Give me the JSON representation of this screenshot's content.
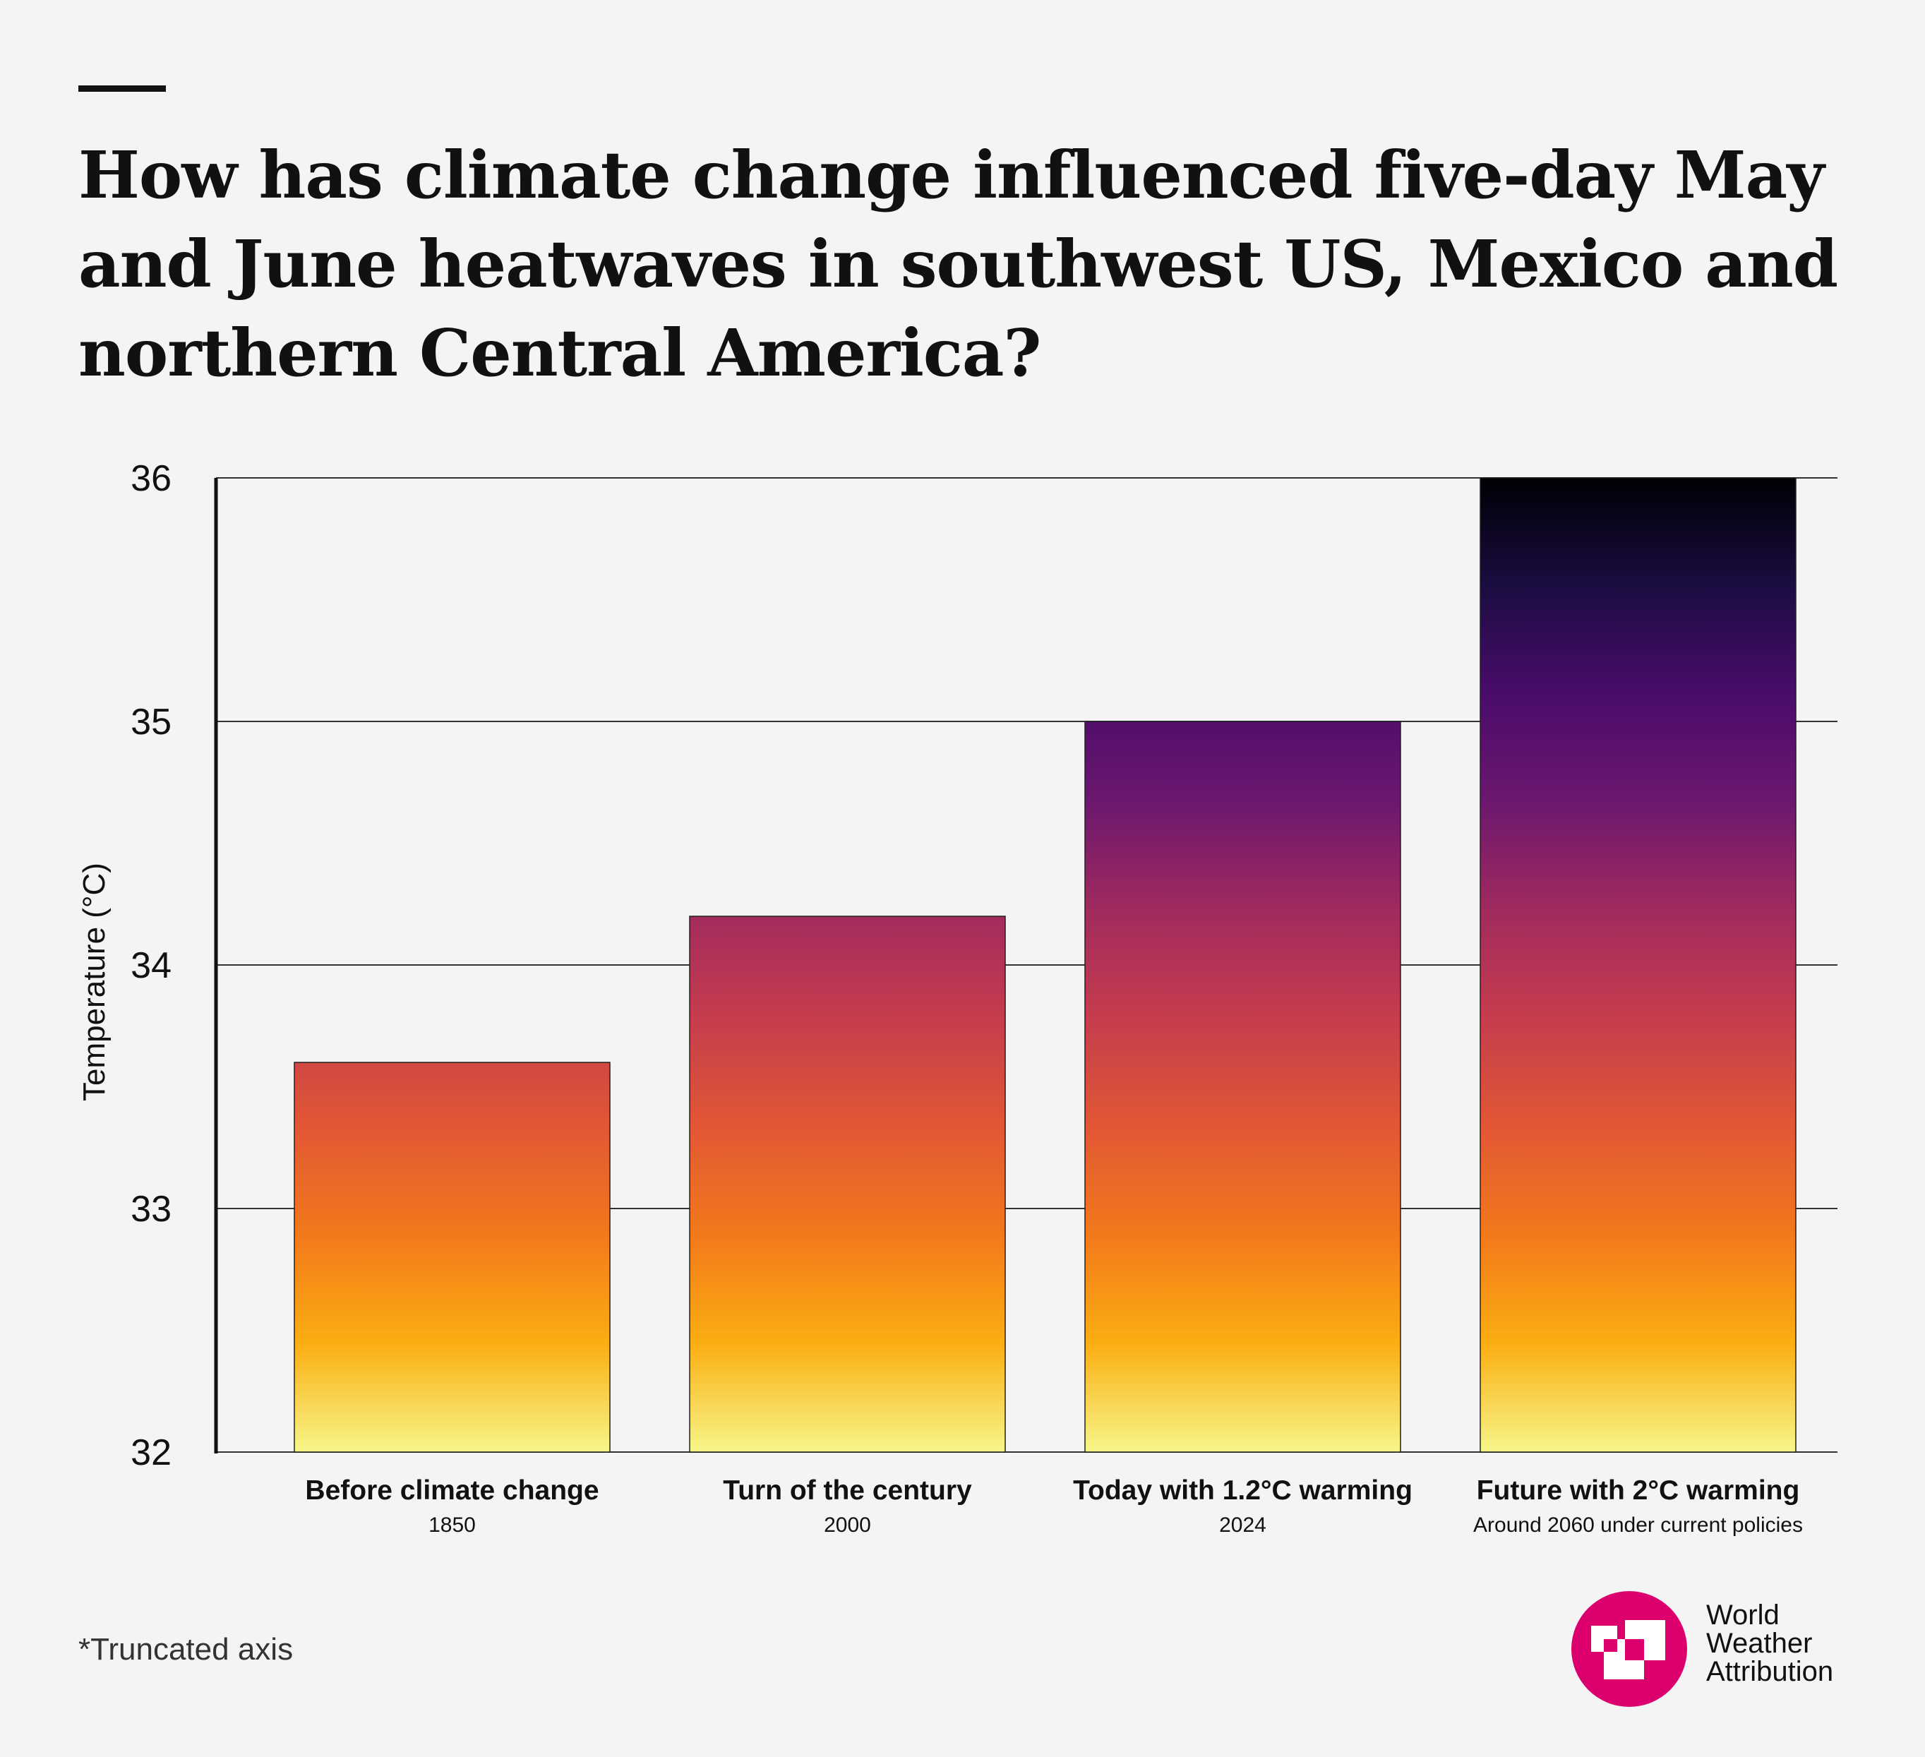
{
  "title": "How has climate change influenced five-day May and June heatwaves in southwest US, Mexico and northern Central America?",
  "footnote": "*Truncated axis",
  "logo": {
    "text_lines": [
      "World",
      "Weather",
      "Attribution"
    ],
    "color": "#dc006e"
  },
  "chart_data": {
    "type": "bar",
    "title": "How has climate change influenced five-day May and June heatwaves in southwest US, Mexico and northern Central America?",
    "categories": [
      "Before climate change",
      "Turn of the century",
      "Today with 1.2°C warming",
      "Future with 2°C warming"
    ],
    "subcategories": [
      "1850",
      "2000",
      "2024",
      "Around 2060 under current policies"
    ],
    "values": [
      33.6,
      34.2,
      35.0,
      36.0
    ],
    "ylabel": "Temperature (°C)",
    "xlabel": "",
    "ylim": [
      32,
      36
    ],
    "yticks": [
      32,
      33,
      34,
      35,
      36
    ],
    "grid": true,
    "color_scale": "inferno gradient by temperature (yellow at 32 to black at 36)",
    "gradient_stops": [
      "#f7f68a",
      "#fbae12",
      "#f3791b",
      "#e25734",
      "#c63d4d",
      "#a12a5e",
      "#6c186e",
      "#4a0c6b",
      "#1b0c41",
      "#000004"
    ]
  }
}
